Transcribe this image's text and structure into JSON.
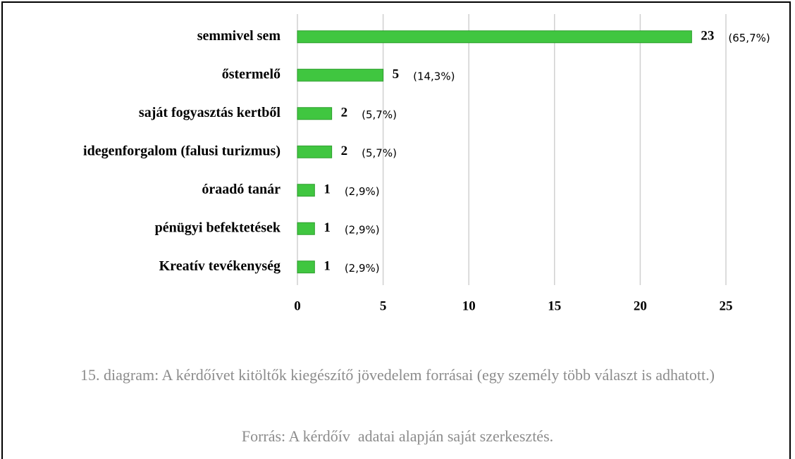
{
  "chart_data": {
    "type": "hbar",
    "categories": [
      "semmivel sem",
      "őstermelő",
      "saját fogyasztás kertből",
      "idegenforgalom (falusi turizmus)",
      "óraadó tanár",
      "pénügyi befektetések",
      "Kreatív tevékenység"
    ],
    "values": [
      23,
      5,
      2,
      2,
      1,
      1,
      1
    ],
    "share_labels": [
      "(65,7%)",
      "(14,3%)",
      "(5,7%)",
      "(5,7%)",
      "(2,9%)",
      "(2,9%)",
      "(2,9%)"
    ],
    "color": "#40c640",
    "xlim": [
      0,
      25
    ],
    "xticks": [
      0,
      5,
      10,
      15,
      20,
      25
    ],
    "grid": true
  },
  "caption": "15. diagram: A kérdőívet kitöltők kiegészítő jövedelem forrásai (egy személy több választ is adhatott.)",
  "source": "Forrás: A kérdőív  adatai alapján saját szerkesztés."
}
